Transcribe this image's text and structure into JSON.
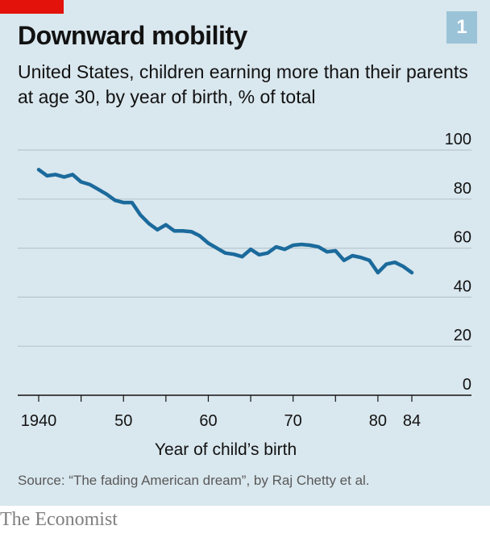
{
  "header": {
    "title": "Downward mobility",
    "subtitle": "United States, children earning more than their parents at age 30, by year of birth, % of total",
    "chart_number": "1"
  },
  "footer": {
    "source": "Source: “The fading American dream”, by Raj Chetty et al.",
    "brand": "The Economist"
  },
  "colors": {
    "panel_background": "#d9e7ee",
    "line": "#1b6a9c",
    "brand_red": "#e3120b",
    "badge": "#9bc3d8"
  },
  "chart_data": {
    "type": "line",
    "xlabel": "Year of child’s birth",
    "ylabel": "",
    "xlim": [
      1940,
      1984
    ],
    "ylim": [
      0,
      100
    ],
    "y_ticks": [
      0,
      20,
      40,
      60,
      80,
      100
    ],
    "y_tick_labels": [
      "0",
      "20",
      "40",
      "60",
      "80",
      "100"
    ],
    "x_ticks": [
      1940,
      1950,
      1960,
      1970,
      1980,
      1984
    ],
    "x_tick_labels": [
      "1940",
      "50",
      "60",
      "70",
      "80",
      "84"
    ],
    "grid": true,
    "series": [
      {
        "x": [
          1940,
          1941,
          1942,
          1943,
          1944,
          1945,
          1946,
          1947,
          1948,
          1949,
          1950,
          1951,
          1952,
          1953,
          1954,
          1955,
          1956,
          1957,
          1958,
          1959,
          1960,
          1961,
          1962,
          1963,
          1964,
          1965,
          1966,
          1967,
          1968,
          1969,
          1970,
          1971,
          1972,
          1973,
          1974,
          1975,
          1976,
          1977,
          1978,
          1979,
          1980,
          1981,
          1982,
          1983,
          1984
        ],
        "values": [
          92,
          89.5,
          90,
          89,
          90,
          87,
          86,
          84,
          82,
          79.5,
          78.6,
          78.6,
          73.5,
          70,
          67.5,
          69.5,
          67,
          67,
          66.7,
          65,
          62,
          60,
          58,
          57.5,
          56.5,
          59.5,
          57.3,
          58,
          60.5,
          59.5,
          61.2,
          61.5,
          61.2,
          60.5,
          58.5,
          58.9,
          55,
          56.9,
          56.2,
          55,
          50,
          53.5,
          54.2,
          52.5,
          50
        ]
      }
    ]
  }
}
